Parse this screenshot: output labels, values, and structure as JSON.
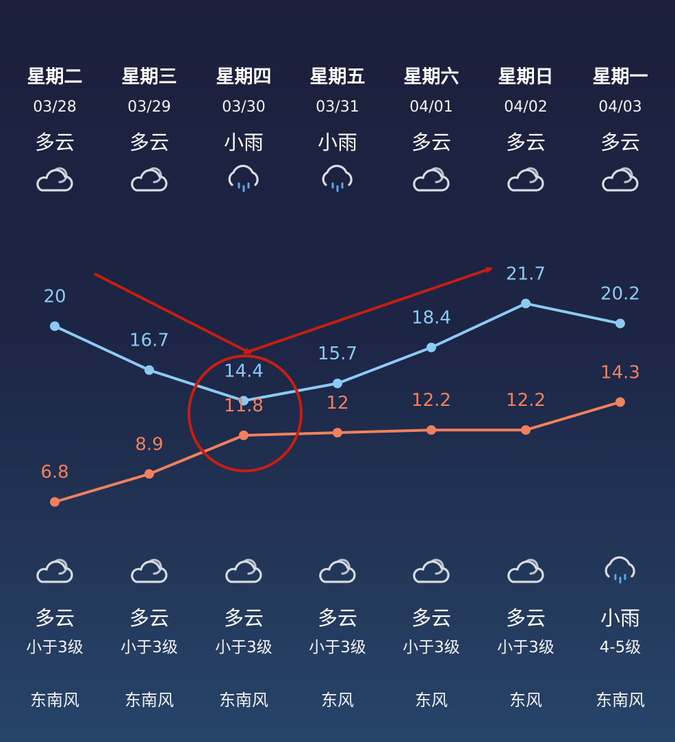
{
  "days": [
    {
      "day": "星期二",
      "date": "03/28",
      "day_cond": "多云",
      "day_icon": "cloud-icon",
      "night_cond": "多云",
      "night_icon": "cloud-icon",
      "wind_level": "小于3级",
      "wind_dir": "东南风"
    },
    {
      "day": "星期三",
      "date": "03/29",
      "day_cond": "多云",
      "day_icon": "cloud-icon",
      "night_cond": "多云",
      "night_icon": "cloud-icon",
      "wind_level": "小于3级",
      "wind_dir": "东南风"
    },
    {
      "day": "星期四",
      "date": "03/30",
      "day_cond": "小雨",
      "day_icon": "rain-icon",
      "night_cond": "多云",
      "night_icon": "cloud-icon",
      "wind_level": "小于3级",
      "wind_dir": "东南风"
    },
    {
      "day": "星期五",
      "date": "03/31",
      "day_cond": "小雨",
      "day_icon": "rain-icon",
      "night_cond": "多云",
      "night_icon": "cloud-icon",
      "wind_level": "小于3级",
      "wind_dir": "东风"
    },
    {
      "day": "星期六",
      "date": "04/01",
      "day_cond": "多云",
      "day_icon": "cloud-icon",
      "night_cond": "多云",
      "night_icon": "cloud-icon",
      "wind_level": "小于3级",
      "wind_dir": "东风"
    },
    {
      "day": "星期日",
      "date": "04/02",
      "day_cond": "多云",
      "day_icon": "cloud-icon",
      "night_cond": "多云",
      "night_icon": "cloud-icon",
      "wind_level": "小于3级",
      "wind_dir": "东风"
    },
    {
      "day": "星期一",
      "date": "04/03",
      "day_cond": "多云",
      "day_icon": "cloud-icon",
      "night_cond": "小雨",
      "night_icon": "rain-icon",
      "wind_level": "4-5级",
      "wind_dir": "东南风"
    }
  ],
  "colors": {
    "high": "#8ccaf3",
    "low": "#f0805e",
    "annotation": "#c81e10"
  },
  "chart_data": {
    "type": "line",
    "categories": [
      "03/28",
      "03/29",
      "03/30",
      "03/31",
      "04/01",
      "04/02",
      "04/03"
    ],
    "series": [
      {
        "values": [
          20,
          16.7,
          14.4,
          15.7,
          18.4,
          21.7,
          20.2
        ]
      },
      {
        "values": [
          6.8,
          8.9,
          11.8,
          12,
          12.2,
          12.2,
          14.3
        ]
      }
    ],
    "data_labels": [
      [
        "20",
        "16.7",
        "14.4",
        "15.7",
        "18.4",
        "21.7",
        "20.2"
      ],
      [
        "6.8",
        "8.9",
        "11.8",
        "12",
        "12.2",
        "12.2",
        "14.3"
      ]
    ],
    "grid": false,
    "annotations": [
      {
        "type": "circle",
        "around_category": "03/30"
      },
      {
        "type": "arrow",
        "direction": "down",
        "to_category": "03/30"
      },
      {
        "type": "arrow",
        "direction": "up",
        "from_category": "03/30",
        "to_category": "04/02"
      }
    ]
  }
}
